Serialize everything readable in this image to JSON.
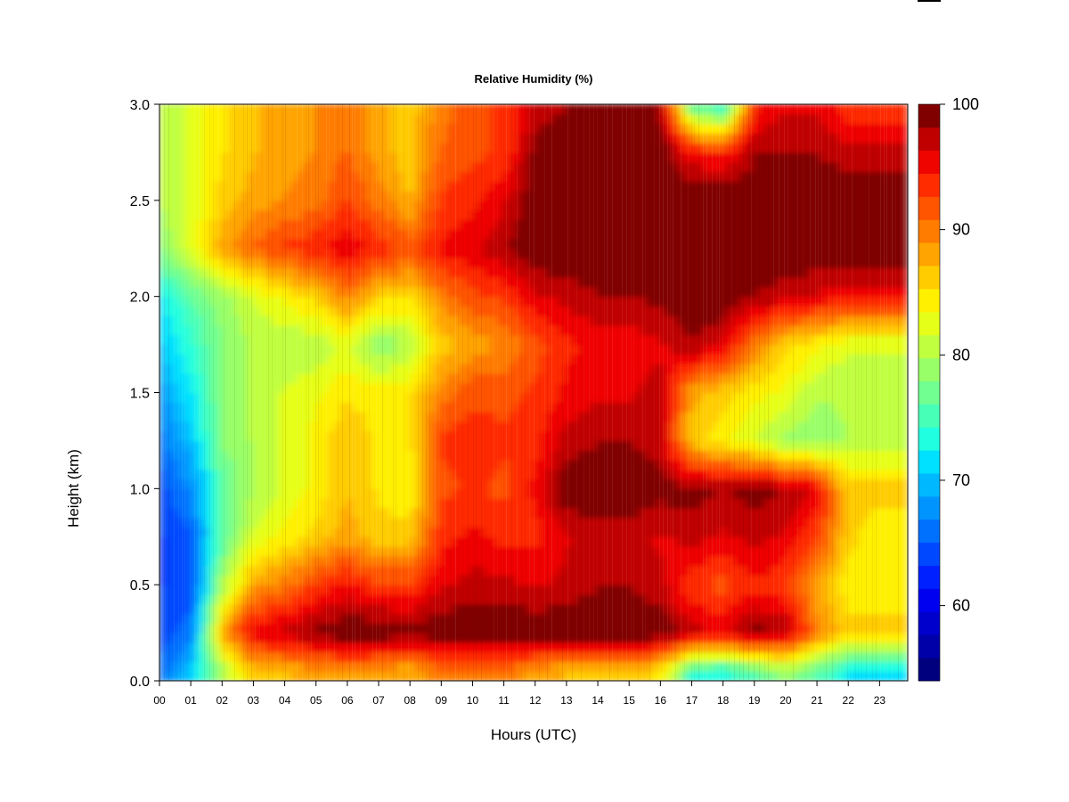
{
  "chart_data": {
    "type": "heatmap",
    "title": "Relative Humidity (%)",
    "xlabel": "Hours (UTC)",
    "ylabel": "Height (km)",
    "xlim": [
      0,
      23.9
    ],
    "ylim": [
      0,
      3.0
    ],
    "x_ticks": [
      "00",
      "01",
      "02",
      "03",
      "04",
      "05",
      "06",
      "07",
      "08",
      "09",
      "10",
      "11",
      "12",
      "13",
      "14",
      "15",
      "16",
      "17",
      "18",
      "19",
      "20",
      "21",
      "22",
      "23"
    ],
    "y_ticks": [
      "0.0",
      "0.5",
      "1.0",
      "1.5",
      "2.0",
      "2.5",
      "3.0"
    ],
    "colorbar": {
      "min": 54,
      "max": 100,
      "ticks": [
        "60",
        "70",
        "80",
        "90",
        "100"
      ],
      "colors": [
        "#00007f",
        "#0000a8",
        "#0000cc",
        "#0000f0",
        "#0020ff",
        "#0048ff",
        "#0070ff",
        "#0094ff",
        "#00b8ff",
        "#00e0ff",
        "#20ffdf",
        "#48ffb8",
        "#70ff90",
        "#98ff68",
        "#c0ff40",
        "#e6ff18",
        "#fff000",
        "#ffcc00",
        "#ffa400",
        "#ff7c00",
        "#ff5400",
        "#ff2c00",
        "#f00400",
        "#c00000",
        "#800000"
      ]
    },
    "hours": [
      0,
      1,
      2,
      3,
      4,
      5,
      6,
      7,
      8,
      9,
      10,
      11,
      12,
      13,
      14,
      15,
      16,
      17,
      18,
      19,
      20,
      21,
      22,
      23
    ],
    "heights_km": [
      0.05,
      0.25,
      0.5,
      0.75,
      1.0,
      1.25,
      1.5,
      1.75,
      2.0,
      2.25,
      2.5,
      2.75,
      3.0
    ],
    "values": [
      [
        66,
        64,
        63,
        63,
        64,
        66,
        68,
        70,
        72,
        78,
        80,
        80,
        80
      ],
      [
        70,
        66,
        64,
        65,
        67,
        70,
        72,
        74,
        76,
        82,
        82,
        82,
        82
      ],
      [
        80,
        88,
        80,
        76,
        76,
        78,
        78,
        78,
        79,
        88,
        86,
        85,
        85
      ],
      [
        86,
        96,
        88,
        82,
        80,
        80,
        80,
        80,
        82,
        91,
        88,
        87,
        87
      ],
      [
        87,
        97,
        90,
        84,
        82,
        82,
        82,
        80,
        84,
        93,
        89,
        88,
        88
      ],
      [
        88,
        99,
        93,
        86,
        84,
        84,
        83,
        80,
        86,
        94,
        90,
        89,
        89
      ],
      [
        89,
        100,
        95,
        88,
        87,
        87,
        85,
        82,
        90,
        96,
        93,
        91,
        90
      ],
      [
        88,
        100,
        93,
        86,
        85,
        85,
        84,
        78,
        86,
        94,
        90,
        88,
        88
      ],
      [
        87,
        99,
        93,
        86,
        84,
        85,
        85,
        80,
        85,
        92,
        87,
        86,
        86
      ],
      [
        90,
        100,
        96,
        94,
        92,
        93,
        90,
        86,
        90,
        95,
        93,
        91,
        90
      ],
      [
        90,
        100,
        97,
        95,
        93,
        94,
        92,
        88,
        92,
        96,
        94,
        92,
        92
      ],
      [
        90,
        100,
        97,
        94,
        92,
        93,
        92,
        89,
        93,
        98,
        96,
        93,
        93
      ],
      [
        88,
        100,
        96,
        94,
        95,
        94,
        93,
        92,
        96,
        100,
        100,
        99,
        97
      ],
      [
        87,
        100,
        97,
        96,
        100,
        97,
        95,
        94,
        97,
        100,
        100,
        100,
        98
      ],
      [
        86,
        100,
        98,
        97,
        100,
        98,
        96,
        95,
        98,
        100,
        100,
        100,
        99
      ],
      [
        86,
        100,
        98,
        97,
        100,
        98,
        96,
        95,
        98,
        100,
        100,
        100,
        99
      ],
      [
        85,
        100,
        97,
        96,
        99,
        97,
        97,
        96,
        99,
        100,
        100,
        100,
        98
      ],
      [
        74,
        97,
        93,
        97,
        99,
        86,
        88,
        98,
        100,
        100,
        100,
        95,
        76
      ],
      [
        73,
        96,
        92,
        96,
        98,
        84,
        86,
        96,
        100,
        100,
        100,
        94,
        73
      ],
      [
        76,
        99,
        94,
        97,
        99,
        82,
        84,
        90,
        98,
        100,
        100,
        98,
        94
      ],
      [
        79,
        98,
        93,
        96,
        98,
        79,
        83,
        86,
        97,
        100,
        100,
        98,
        96
      ],
      [
        76,
        90,
        88,
        93,
        96,
        78,
        80,
        84,
        96,
        100,
        100,
        98,
        96
      ],
      [
        72,
        86,
        84,
        86,
        86,
        80,
        80,
        82,
        95,
        100,
        100,
        97,
        93
      ],
      [
        72,
        86,
        84,
        84,
        86,
        80,
        80,
        82,
        95,
        100,
        100,
        97,
        93
      ]
    ]
  }
}
